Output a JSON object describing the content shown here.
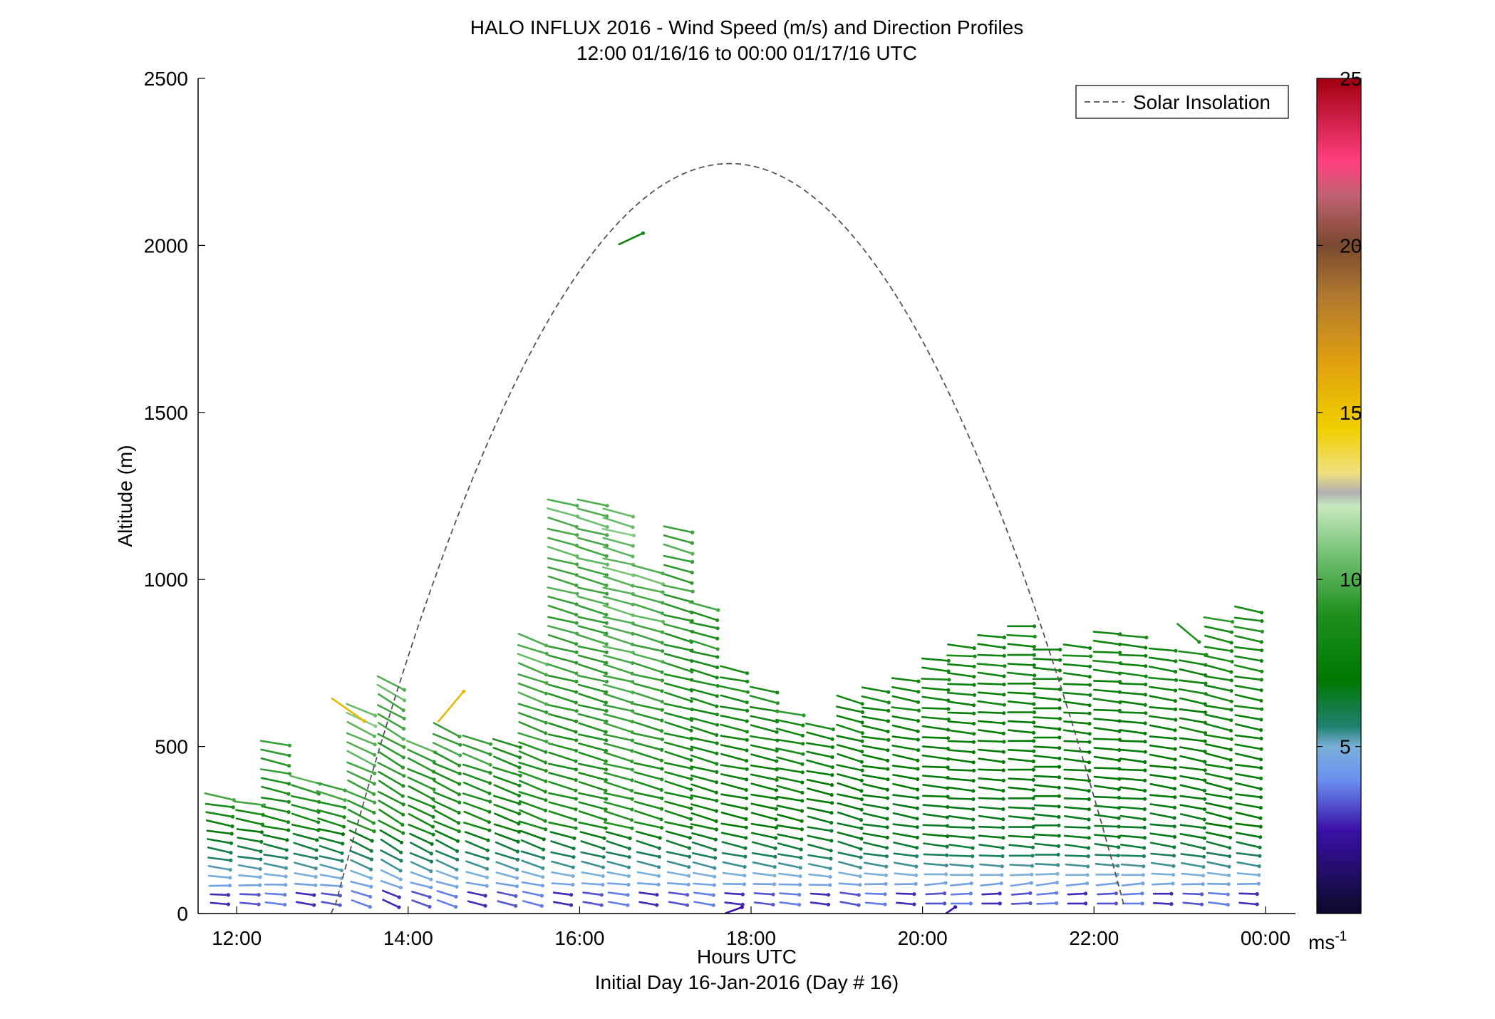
{
  "chart_data": {
    "type": "quiver",
    "title": "HALO INFLUX 2016 - Wind Speed (m/s) and Direction Profiles",
    "subtitle": "12:00 01/16/16 to 00:00 01/17/16  UTC",
    "xlabel": "Hours UTC",
    "xlabel2": "Initial Day 16-Jan-2016 (Day # 16)",
    "ylabel": "Altitude (m)",
    "xlim": [
      11.55,
      24.35
    ],
    "ylim": [
      0,
      2500
    ],
    "x_ticks": [
      12,
      14,
      16,
      18,
      20,
      22,
      24
    ],
    "x_tick_labels": [
      "12:00",
      "14:00",
      "16:00",
      "18:00",
      "20:00",
      "22:00",
      "00:00"
    ],
    "y_ticks": [
      0,
      500,
      1000,
      1500,
      2000,
      2500
    ],
    "y_tick_labels": [
      "0",
      "500",
      "1000",
      "1500",
      "2000",
      "2500"
    ],
    "grid": false,
    "legend": {
      "entries": [
        "Solar Insolation"
      ],
      "placement": "top-right"
    },
    "colorbar": {
      "range": [
        0,
        25
      ],
      "ticks": [
        5,
        10,
        15,
        20,
        25
      ],
      "tick_labels": [
        "5",
        "10",
        "15",
        "20",
        "25"
      ],
      "unit_label": "ms",
      "unit_exponent": "-1"
    },
    "solar_insolation": {
      "style": "dashed",
      "color": "#555555",
      "rise_hour": 13.1,
      "set_hour": 22.35,
      "peak_hour": 17.75,
      "peak_altitude": 2245
    },
    "wind_profiles": [
      {
        "hour": 11.8,
        "top": 350,
        "speed": 9.0,
        "dir": -10
      },
      {
        "hour": 12.15,
        "top": 330,
        "speed": 9.0,
        "dir": -10
      },
      {
        "hour": 12.45,
        "top": 510,
        "speed": 9.5,
        "dir": -12
      },
      {
        "hour": 12.8,
        "top": 400,
        "speed": 9.5,
        "dir": -15
      },
      {
        "hour": 13.1,
        "top": 380,
        "speed": 9.5,
        "dir": -15
      },
      {
        "hour": 13.45,
        "top": 610,
        "speed": 10.5,
        "dir": -25
      },
      {
        "hour": 13.8,
        "top": 690,
        "speed": 10.0,
        "dir": -30
      },
      {
        "hour": 14.15,
        "top": 500,
        "speed": 9.5,
        "dir": -25
      },
      {
        "hour": 14.45,
        "top": 550,
        "speed": 9.5,
        "dir": -25
      },
      {
        "hour": 14.8,
        "top": 520,
        "speed": 9.5,
        "dir": -20
      },
      {
        "hour": 15.15,
        "top": 510,
        "speed": 9.0,
        "dir": -20
      },
      {
        "hour": 15.45,
        "top": 820,
        "speed": 10.0,
        "dir": -20
      },
      {
        "hour": 15.8,
        "top": 1230,
        "speed": 10.0,
        "dir": -15
      },
      {
        "hour": 16.15,
        "top": 1230,
        "speed": 10.0,
        "dir": -15
      },
      {
        "hour": 16.45,
        "top": 1200,
        "speed": 10.5,
        "dir": -15
      },
      {
        "hour": 16.8,
        "top": 1030,
        "speed": 10.0,
        "dir": -15
      },
      {
        "hour": 17.15,
        "top": 1150,
        "speed": 9.5,
        "dir": -15
      },
      {
        "hour": 17.45,
        "top": 920,
        "speed": 9.0,
        "dir": -15
      },
      {
        "hour": 17.8,
        "top": 730,
        "speed": 8.5,
        "dir": -12
      },
      {
        "hour": 18.15,
        "top": 670,
        "speed": 8.5,
        "dir": -12
      },
      {
        "hour": 18.45,
        "top": 600,
        "speed": 8.5,
        "dir": -12
      },
      {
        "hour": 18.8,
        "top": 560,
        "speed": 8.0,
        "dir": -12
      },
      {
        "hour": 19.15,
        "top": 640,
        "speed": 8.0,
        "dir": -15
      },
      {
        "hour": 19.45,
        "top": 670,
        "speed": 8.0,
        "dir": -10
      },
      {
        "hour": 19.8,
        "top": 700,
        "speed": 8.0,
        "dir": -10
      },
      {
        "hour": 20.15,
        "top": 760,
        "speed": 8.0,
        "dir": -5
      },
      {
        "hour": 20.45,
        "top": 800,
        "speed": 8.0,
        "dir": -5
      },
      {
        "hour": 20.8,
        "top": 830,
        "speed": 8.0,
        "dir": -5
      },
      {
        "hour": 21.15,
        "top": 860,
        "speed": 8.0,
        "dir": -3
      },
      {
        "hour": 21.45,
        "top": 790,
        "speed": 8.0,
        "dir": -3
      },
      {
        "hour": 21.8,
        "top": 800,
        "speed": 8.0,
        "dir": -5
      },
      {
        "hour": 22.15,
        "top": 840,
        "speed": 8.0,
        "dir": -5
      },
      {
        "hour": 22.45,
        "top": 830,
        "speed": 8.0,
        "dir": -5
      },
      {
        "hour": 22.8,
        "top": 790,
        "speed": 8.0,
        "dir": -8
      },
      {
        "hour": 23.15,
        "top": 780,
        "speed": 8.0,
        "dir": -10
      },
      {
        "hour": 23.45,
        "top": 880,
        "speed": 8.5,
        "dir": -12
      },
      {
        "hour": 23.8,
        "top": 910,
        "speed": 8.5,
        "dir": -10
      }
    ],
    "isolated_vectors": [
      {
        "hour": 13.3,
        "altitude": 610,
        "speed": 15.5,
        "dir": -35
      },
      {
        "hour": 14.5,
        "altitude": 620,
        "speed": 15.5,
        "dir": 50
      },
      {
        "hour": 16.6,
        "altitude": 2020,
        "speed": 8.0,
        "dir": 25
      },
      {
        "hour": 17.8,
        "altitude": 10,
        "speed": 2.5,
        "dir": 20
      },
      {
        "hour": 20.3,
        "altitude": 5,
        "speed": 2.5,
        "dir": 35
      },
      {
        "hour": 23.1,
        "altitude": 840,
        "speed": 9.0,
        "dir": -40
      }
    ]
  }
}
